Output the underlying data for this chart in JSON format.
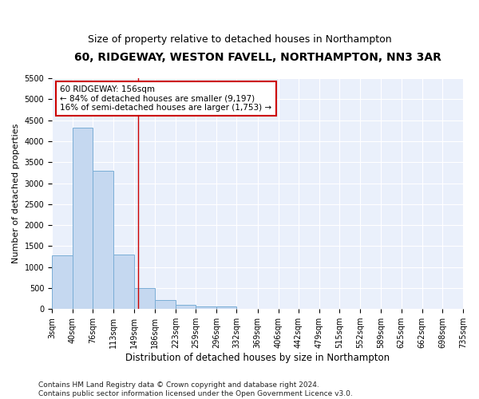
{
  "title": "60, RIDGEWAY, WESTON FAVELL, NORTHAMPTON, NN3 3AR",
  "subtitle": "Size of property relative to detached houses in Northampton",
  "xlabel": "Distribution of detached houses by size in Northampton",
  "ylabel": "Number of detached properties",
  "bar_color": "#c5d8f0",
  "bar_edgecolor": "#7aaed6",
  "background_color": "#eaf0fb",
  "vline_x": 156,
  "bin_edges": [
    3,
    40,
    76,
    113,
    149,
    186,
    223,
    259,
    296,
    332,
    369,
    406,
    442,
    479,
    515,
    552,
    589,
    625,
    662,
    698,
    735
  ],
  "bar_heights": [
    1270,
    4330,
    3300,
    1290,
    490,
    210,
    95,
    65,
    60,
    0,
    0,
    0,
    0,
    0,
    0,
    0,
    0,
    0,
    0,
    0
  ],
  "annotation_line1": "60 RIDGEWAY: 156sqm",
  "annotation_line2": "← 84% of detached houses are smaller (9,197)",
  "annotation_line3": "16% of semi-detached houses are larger (1,753) →",
  "annotation_box_color": "white",
  "annotation_box_edgecolor": "#cc0000",
  "ylim": [
    0,
    5500
  ],
  "yticks": [
    0,
    500,
    1000,
    1500,
    2000,
    2500,
    3000,
    3500,
    4000,
    4500,
    5000,
    5500
  ],
  "footnote": "Contains HM Land Registry data © Crown copyright and database right 2024.\nContains public sector information licensed under the Open Government Licence v3.0.",
  "title_fontsize": 10,
  "subtitle_fontsize": 9,
  "xlabel_fontsize": 8.5,
  "ylabel_fontsize": 8,
  "tick_fontsize": 7,
  "footnote_fontsize": 6.5
}
